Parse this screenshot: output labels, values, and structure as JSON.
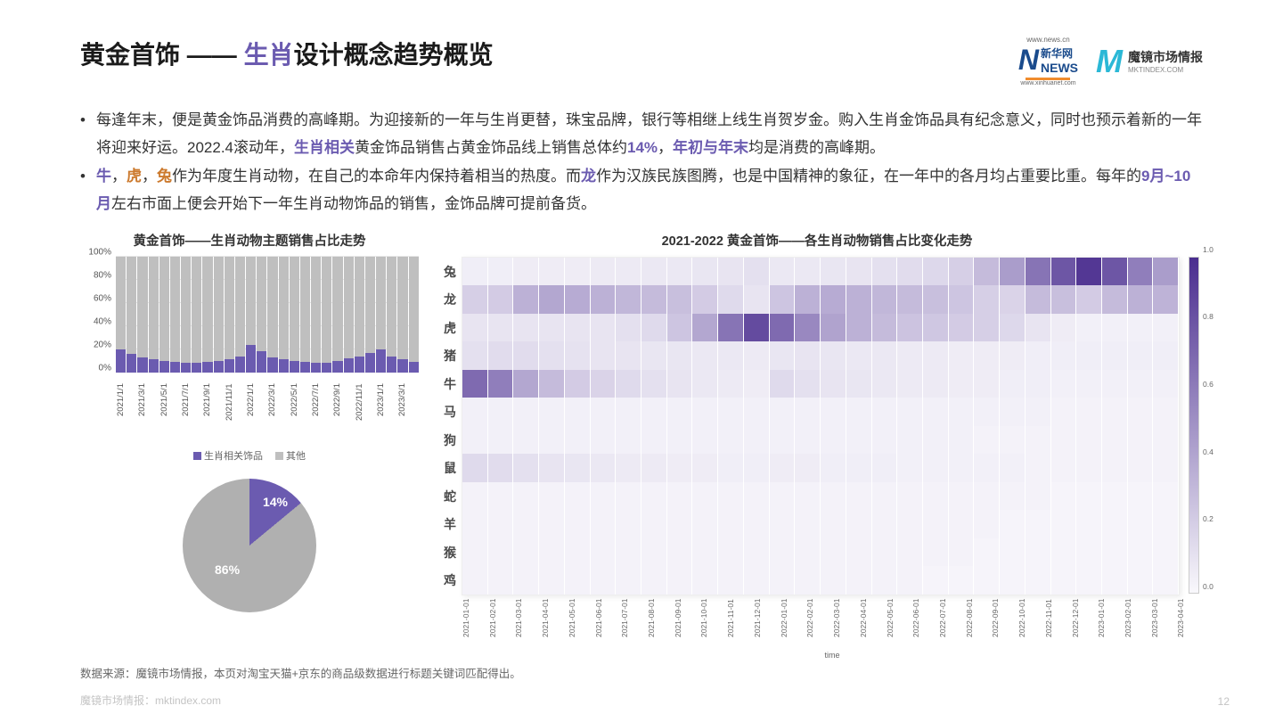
{
  "title": {
    "prefix": "黄金首饰 —— ",
    "highlight": "生肖",
    "suffix": "设计概念趋势概览"
  },
  "logos": {
    "news_top": "www.news.cn",
    "news_cn": "新华网",
    "news_label": "NEWS",
    "news_bottom": "www.xinhuanet.com",
    "mkt_label": "魔镜市场情报",
    "mkt_sub": "MKTINDEX.COM"
  },
  "bullets": [
    {
      "segments": [
        {
          "t": "每逢年末，便是黄金饰品消费的高峰期。为迎接新的一年与生肖更替，珠宝品牌，银行等相继上线生肖贺岁金。购入生肖金饰品具有纪念意义，同时也预示着新的一年将迎来好运。2022.4滚动年，"
        },
        {
          "t": "生肖相关",
          "c": "hl1"
        },
        {
          "t": "黄金饰品销售占黄金饰品线上销售总体约"
        },
        {
          "t": "14%",
          "c": "hl1"
        },
        {
          "t": "，"
        },
        {
          "t": "年初与年末",
          "c": "hl1"
        },
        {
          "t": "均是消费的高峰期。"
        }
      ]
    },
    {
      "segments": [
        {
          "t": "牛",
          "c": "hl1"
        },
        {
          "t": "，"
        },
        {
          "t": "虎",
          "c": "hl2"
        },
        {
          "t": "，"
        },
        {
          "t": "兔",
          "c": "hl2"
        },
        {
          "t": "作为年度生肖动物，在自己的本命年内保持着相当的热度。而"
        },
        {
          "t": "龙",
          "c": "hl1"
        },
        {
          "t": "作为汉族民族图腾，也是中国精神的象征，在一年中的各月均占重要比重。每年的"
        },
        {
          "t": "9月~10月",
          "c": "hl1"
        },
        {
          "t": "左右市面上便会开始下一年生肖动物饰品的销售，金饰品牌可提前备货。"
        }
      ]
    }
  ],
  "bar_chart": {
    "title": "黄金首饰——生肖动物主题销售占比走势",
    "y_ticks": [
      "0%",
      "20%",
      "40%",
      "60%",
      "80%",
      "100%"
    ],
    "y_max": 100,
    "categories": [
      "2021/1/1",
      "",
      "2021/3/1",
      "",
      "2021/5/1",
      "",
      "2021/7/1",
      "",
      "2021/9/1",
      "",
      "2021/11/1",
      "",
      "2022/1/1",
      "",
      "2022/3/1",
      "",
      "2022/5/1",
      "",
      "2022/7/1",
      "",
      "2022/9/1",
      "",
      "2022/11/1",
      "",
      "2023/1/1",
      "",
      "2023/3/1",
      ""
    ],
    "zodiac_pct": [
      20,
      16,
      13,
      11,
      10,
      9,
      8,
      8,
      9,
      10,
      11,
      14,
      24,
      18,
      13,
      11,
      10,
      9,
      8,
      8,
      10,
      12,
      14,
      17,
      20,
      14,
      11,
      9
    ],
    "colors": {
      "zodiac": "#6b5bb0",
      "other": "#bfbfbf",
      "grid": "#e8e8e8"
    },
    "legend": [
      {
        "label": "生肖相关饰品",
        "color": "#6b5bb0"
      },
      {
        "label": "其他",
        "color": "#bfbfbf"
      }
    ]
  },
  "pie": {
    "zodiac_pct": 14,
    "other_pct": 86,
    "zodiac_label": "14%",
    "other_label": "86%",
    "colors": {
      "zodiac": "#6b5bb0",
      "other": "#b0b0b0"
    }
  },
  "heatmap": {
    "title": "2021-2022 黄金首饰——各生肖动物销售占比变化走势",
    "rows": [
      "兔",
      "龙",
      "虎",
      "猪",
      "牛",
      "马",
      "狗",
      "鼠",
      "蛇",
      "羊",
      "猴",
      "鸡"
    ],
    "cols": [
      "2021-01-01",
      "2021-02-01",
      "2021-03-01",
      "2021-04-01",
      "2021-05-01",
      "2021-06-01",
      "2021-07-01",
      "2021-08-01",
      "2021-09-01",
      "2021-10-01",
      "2021-11-01",
      "2021-12-01",
      "2022-01-01",
      "2022-02-01",
      "2022-03-01",
      "2022-04-01",
      "2022-05-01",
      "2022-06-01",
      "2022-07-01",
      "2022-08-01",
      "2022-09-01",
      "2022-10-01",
      "2022-11-01",
      "2022-12-01",
      "2023-01-01",
      "2023-02-01",
      "2023-03-01",
      "2023-04-01"
    ],
    "x_title": "time",
    "color_low": "#f9f8fc",
    "color_high": "#4a2d8f",
    "colorbar_ticks": [
      "0.0",
      "0.2",
      "0.4",
      "0.6",
      "0.8",
      "1.0"
    ],
    "data": [
      [
        0.05,
        0.05,
        0.06,
        0.06,
        0.06,
        0.07,
        0.07,
        0.08,
        0.08,
        0.09,
        0.1,
        0.12,
        0.08,
        0.08,
        0.09,
        0.1,
        0.12,
        0.14,
        0.16,
        0.2,
        0.3,
        0.45,
        0.65,
        0.8,
        0.95,
        0.8,
        0.6,
        0.45
      ],
      [
        0.2,
        0.22,
        0.35,
        0.4,
        0.38,
        0.35,
        0.32,
        0.3,
        0.28,
        0.22,
        0.15,
        0.1,
        0.25,
        0.35,
        0.38,
        0.35,
        0.32,
        0.3,
        0.28,
        0.25,
        0.2,
        0.18,
        0.3,
        0.28,
        0.22,
        0.3,
        0.35,
        0.34
      ],
      [
        0.1,
        0.1,
        0.1,
        0.1,
        0.1,
        0.1,
        0.12,
        0.15,
        0.25,
        0.4,
        0.65,
        0.85,
        0.7,
        0.55,
        0.42,
        0.35,
        0.3,
        0.26,
        0.24,
        0.22,
        0.2,
        0.16,
        0.1,
        0.06,
        0.04,
        0.04,
        0.04,
        0.04
      ],
      [
        0.12,
        0.14,
        0.14,
        0.12,
        0.11,
        0.1,
        0.1,
        0.09,
        0.09,
        0.08,
        0.08,
        0.07,
        0.09,
        0.1,
        0.09,
        0.08,
        0.08,
        0.07,
        0.07,
        0.06,
        0.06,
        0.06,
        0.05,
        0.05,
        0.05,
        0.05,
        0.05,
        0.05
      ],
      [
        0.7,
        0.6,
        0.4,
        0.3,
        0.22,
        0.18,
        0.15,
        0.12,
        0.1,
        0.08,
        0.07,
        0.06,
        0.15,
        0.12,
        0.1,
        0.09,
        0.08,
        0.07,
        0.07,
        0.06,
        0.06,
        0.05,
        0.05,
        0.04,
        0.04,
        0.04,
        0.04,
        0.04
      ],
      [
        0.04,
        0.04,
        0.04,
        0.04,
        0.04,
        0.04,
        0.04,
        0.04,
        0.04,
        0.04,
        0.04,
        0.04,
        0.04,
        0.04,
        0.04,
        0.04,
        0.04,
        0.04,
        0.04,
        0.04,
        0.04,
        0.04,
        0.04,
        0.03,
        0.03,
        0.03,
        0.03,
        0.03
      ],
      [
        0.04,
        0.04,
        0.04,
        0.04,
        0.04,
        0.04,
        0.04,
        0.04,
        0.04,
        0.04,
        0.04,
        0.04,
        0.04,
        0.04,
        0.04,
        0.04,
        0.04,
        0.04,
        0.04,
        0.04,
        0.03,
        0.03,
        0.03,
        0.03,
        0.03,
        0.03,
        0.03,
        0.03
      ],
      [
        0.15,
        0.14,
        0.12,
        0.1,
        0.09,
        0.08,
        0.07,
        0.07,
        0.06,
        0.06,
        0.05,
        0.05,
        0.06,
        0.06,
        0.05,
        0.05,
        0.05,
        0.04,
        0.04,
        0.04,
        0.04,
        0.04,
        0.03,
        0.03,
        0.03,
        0.03,
        0.03,
        0.03
      ],
      [
        0.03,
        0.03,
        0.03,
        0.03,
        0.03,
        0.03,
        0.03,
        0.03,
        0.03,
        0.03,
        0.03,
        0.03,
        0.03,
        0.03,
        0.03,
        0.03,
        0.03,
        0.03,
        0.03,
        0.03,
        0.03,
        0.03,
        0.03,
        0.02,
        0.02,
        0.02,
        0.02,
        0.02
      ],
      [
        0.03,
        0.03,
        0.03,
        0.03,
        0.03,
        0.03,
        0.03,
        0.03,
        0.03,
        0.03,
        0.03,
        0.03,
        0.03,
        0.03,
        0.03,
        0.03,
        0.03,
        0.03,
        0.03,
        0.03,
        0.03,
        0.02,
        0.02,
        0.02,
        0.02,
        0.02,
        0.02,
        0.02
      ],
      [
        0.03,
        0.03,
        0.03,
        0.03,
        0.03,
        0.03,
        0.03,
        0.03,
        0.03,
        0.03,
        0.03,
        0.03,
        0.03,
        0.03,
        0.03,
        0.03,
        0.03,
        0.03,
        0.03,
        0.03,
        0.02,
        0.02,
        0.02,
        0.02,
        0.02,
        0.02,
        0.02,
        0.02
      ],
      [
        0.03,
        0.03,
        0.03,
        0.03,
        0.03,
        0.03,
        0.03,
        0.03,
        0.03,
        0.03,
        0.03,
        0.03,
        0.03,
        0.03,
        0.03,
        0.03,
        0.03,
        0.03,
        0.02,
        0.02,
        0.02,
        0.02,
        0.02,
        0.02,
        0.02,
        0.02,
        0.02,
        0.02
      ]
    ]
  },
  "footer": {
    "note": "数据来源：魔镜市场情报，本页对淘宝天猫+京东的商品级数据进行标题关键词匹配得出。",
    "brand": "魔镜市场情报：mktindex.com",
    "page": "12"
  }
}
